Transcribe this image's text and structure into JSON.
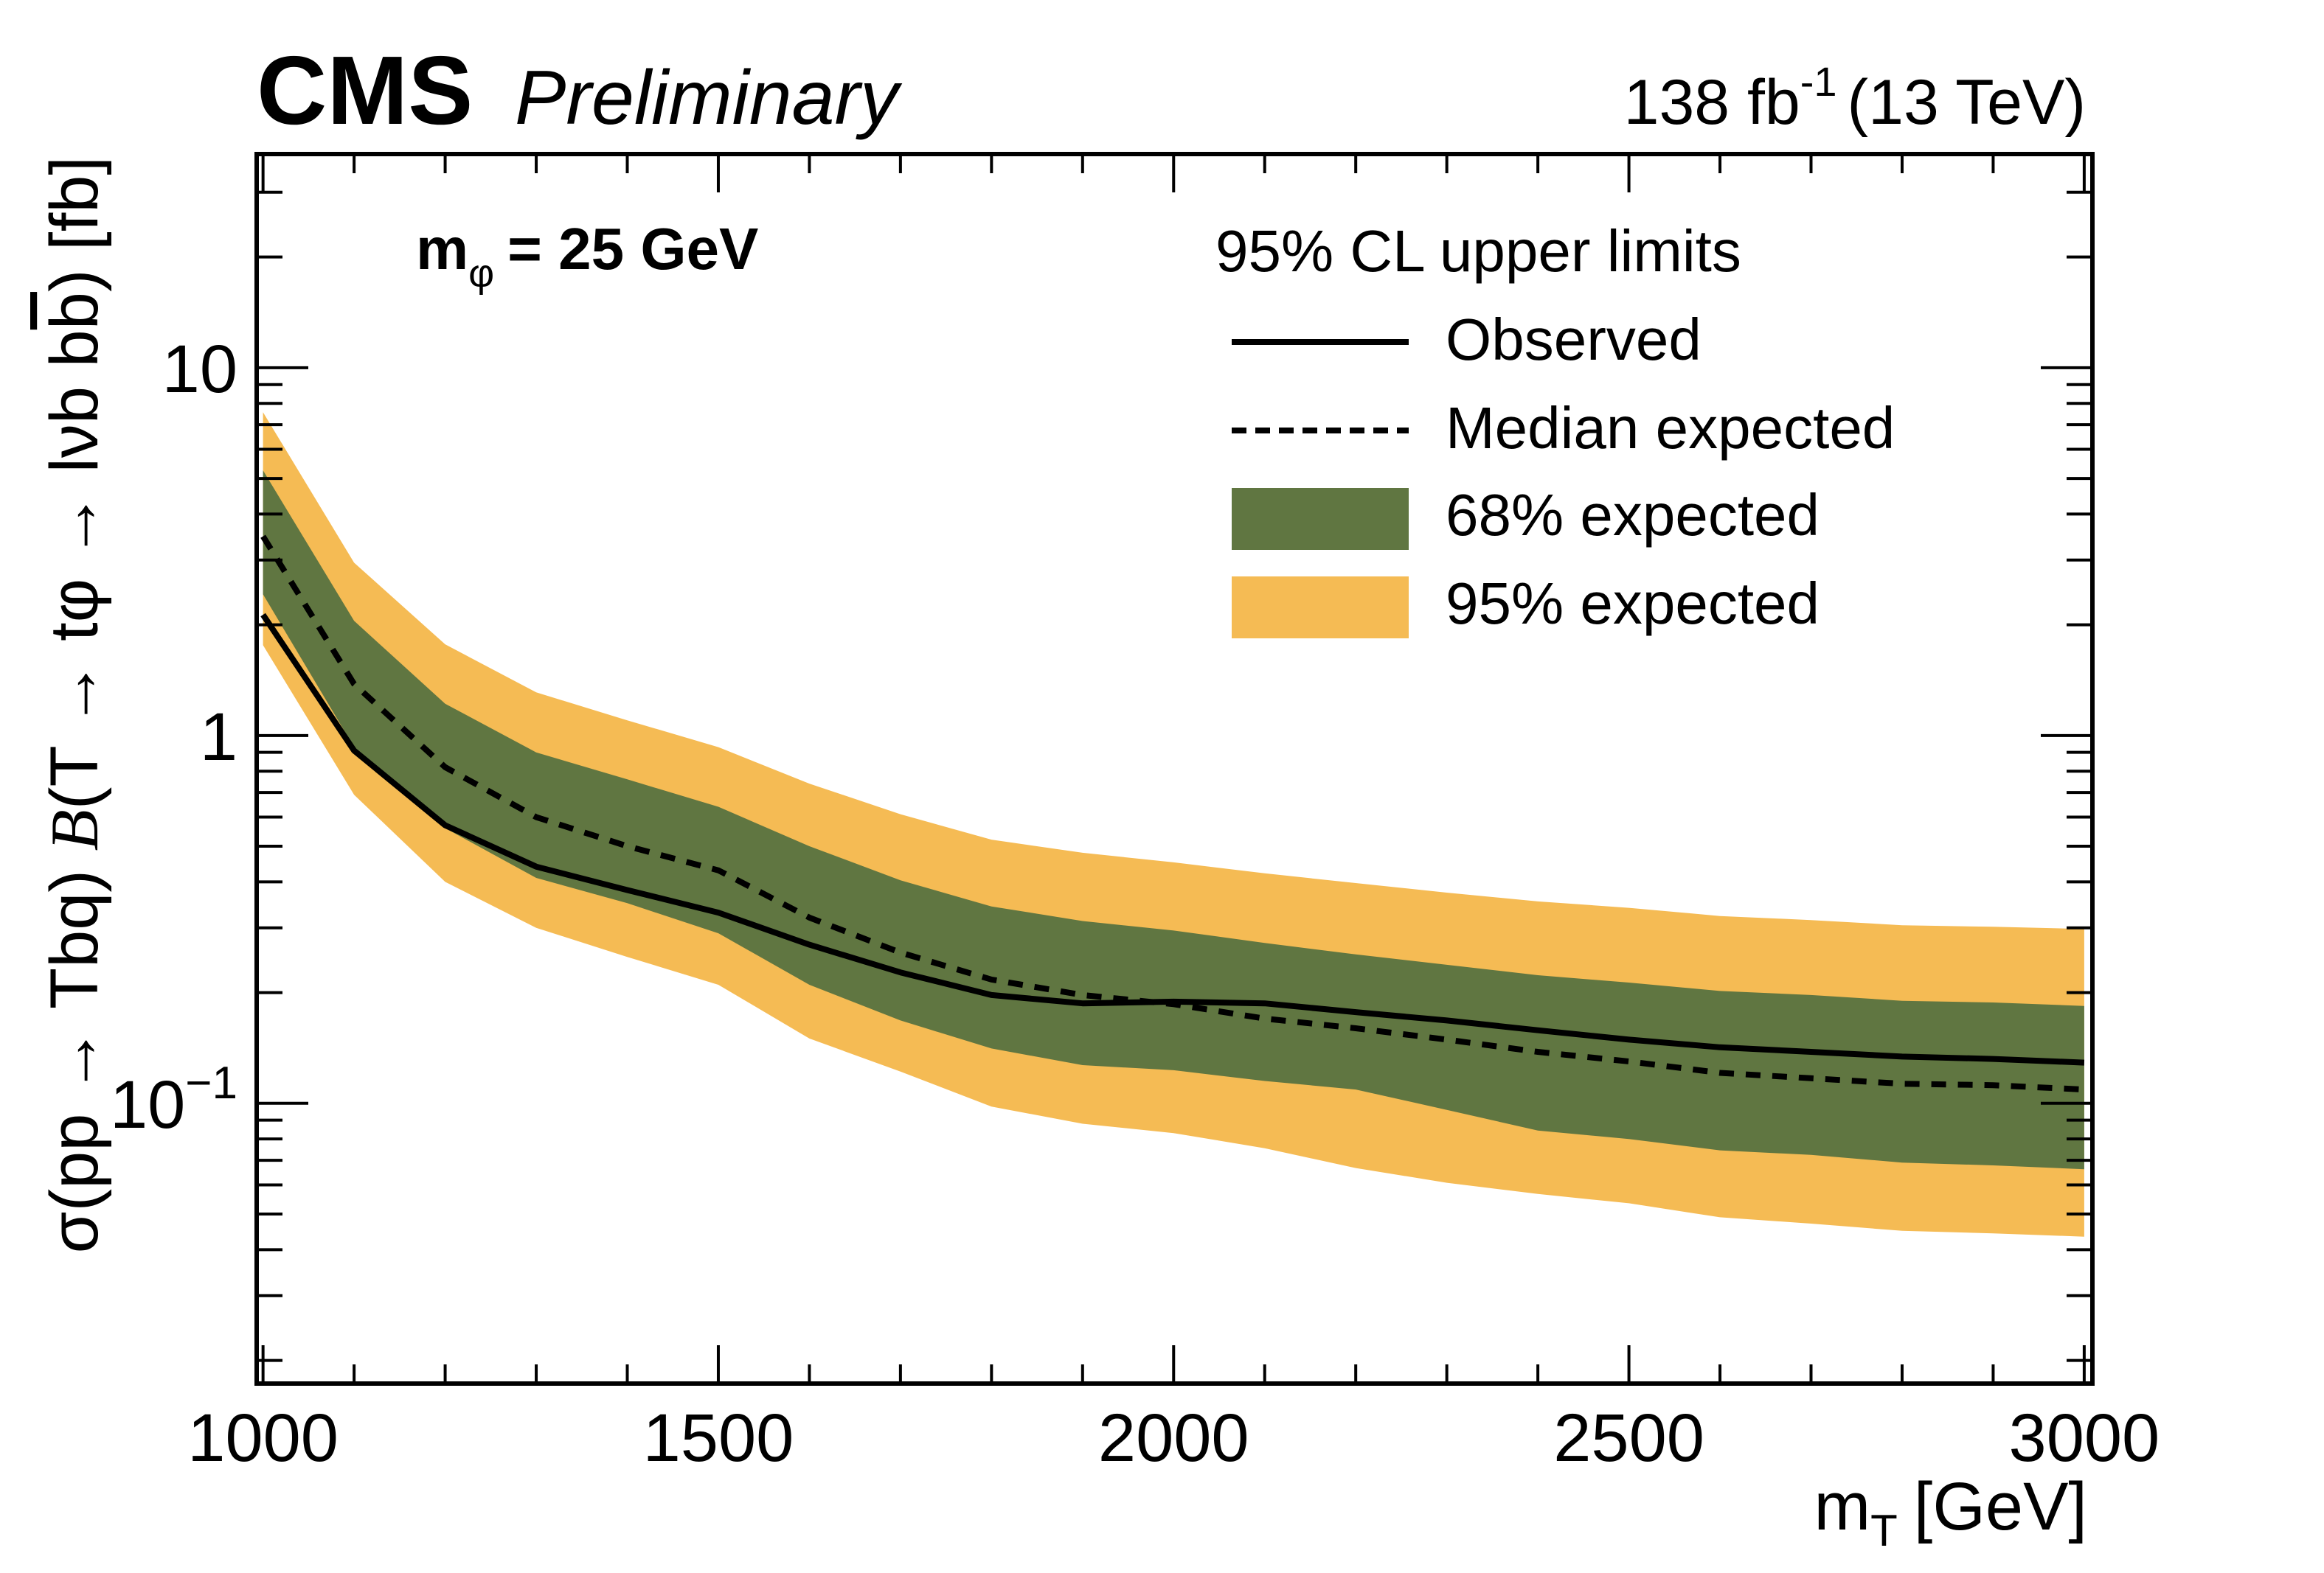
{
  "header": {
    "experiment": "CMS",
    "status": "Preliminary",
    "lumi_value": "138 fb",
    "lumi_exponent": "-1",
    "energy": "(13 TeV)"
  },
  "annotation": {
    "mass_prefix": "m",
    "mass_subscript": "φ",
    "mass_value": "= 25 GeV"
  },
  "legend": {
    "title": "95% CL upper limits",
    "entries": [
      {
        "label": "Observed",
        "style": "solid-line"
      },
      {
        "label": "Median expected",
        "style": "dashed-line"
      },
      {
        "label": "68% expected",
        "style": "band"
      },
      {
        "label": "95% expected",
        "style": "band"
      }
    ]
  },
  "colors": {
    "band68": "#607641",
    "band95": "#F5BB54",
    "line": "#000000"
  },
  "chart_data": {
    "type": "line",
    "title": "CMS Preliminary",
    "xlabel": "m_T [GeV]",
    "xlabel_main": "m",
    "xlabel_sub": "T",
    "xlabel_unit": "[GeV]",
    "ylabel": "σ(pp → Tbq) B(T → tφ → lνb bb̄) [fb]",
    "ylabel_parts": {
      "a": "σ(pp → Tbq) ",
      "b": "B",
      "c": "(T → tφ → lνb  b",
      "d": "b",
      "e": ") [fb]"
    },
    "xscale": "linear",
    "yscale": "log",
    "xlim": [
      993,
      3009
    ],
    "ylim": [
      0.0173,
      38.1
    ],
    "x_major_ticks": [
      1000,
      1500,
      2000,
      2500,
      3000
    ],
    "x_tick_labels": [
      "1000",
      "1500",
      "2000",
      "2500",
      "3000"
    ],
    "y_major_ticks": [
      {
        "value": 10,
        "label": "10"
      },
      {
        "value": 1,
        "label": "1"
      },
      {
        "value": 0.1,
        "label": "10",
        "exp": "−1"
      }
    ],
    "grid": false,
    "legend_position": "top-right",
    "x": [
      1000,
      1100,
      1200,
      1300,
      1400,
      1500,
      1600,
      1700,
      1800,
      1900,
      2000,
      2100,
      2200,
      2300,
      2400,
      2500,
      2600,
      2700,
      2800,
      2900,
      3000
    ],
    "series": [
      {
        "name": "Observed",
        "values": [
          2.13,
          0.91,
          0.57,
          0.44,
          0.38,
          0.33,
          0.27,
          0.227,
          0.197,
          0.187,
          0.189,
          0.187,
          0.177,
          0.168,
          0.158,
          0.149,
          0.142,
          0.138,
          0.134,
          0.132,
          0.129
        ]
      },
      {
        "name": "Median expected",
        "values": [
          3.48,
          1.38,
          0.82,
          0.6,
          0.5,
          0.43,
          0.32,
          0.257,
          0.217,
          0.197,
          0.186,
          0.17,
          0.16,
          0.149,
          0.138,
          0.13,
          0.121,
          0.117,
          0.113,
          0.112,
          0.109
        ]
      },
      {
        "name": "68% expected",
        "lower": [
          2.42,
          0.93,
          0.56,
          0.41,
          0.35,
          0.29,
          0.21,
          0.168,
          0.141,
          0.127,
          0.123,
          0.115,
          0.109,
          0.096,
          0.0843,
          0.08,
          0.0745,
          0.0724,
          0.069,
          0.0678,
          0.0662
        ],
        "upper": [
          5.26,
          2.05,
          1.22,
          0.9,
          0.76,
          0.64,
          0.5,
          0.404,
          0.343,
          0.313,
          0.295,
          0.273,
          0.254,
          0.238,
          0.223,
          0.213,
          0.202,
          0.197,
          0.19,
          0.188,
          0.184
        ]
      },
      {
        "name": "95% expected",
        "lower": [
          1.76,
          0.69,
          0.4,
          0.3,
          0.25,
          0.21,
          0.15,
          0.122,
          0.098,
          0.088,
          0.083,
          0.0755,
          0.0667,
          0.0608,
          0.0567,
          0.0535,
          0.049,
          0.0471,
          0.045,
          0.0443,
          0.0434
        ],
        "upper": [
          7.57,
          2.95,
          1.77,
          1.31,
          1.1,
          0.93,
          0.74,
          0.611,
          0.521,
          0.48,
          0.452,
          0.422,
          0.397,
          0.374,
          0.354,
          0.34,
          0.323,
          0.315,
          0.305,
          0.302,
          0.298
        ]
      }
    ]
  }
}
